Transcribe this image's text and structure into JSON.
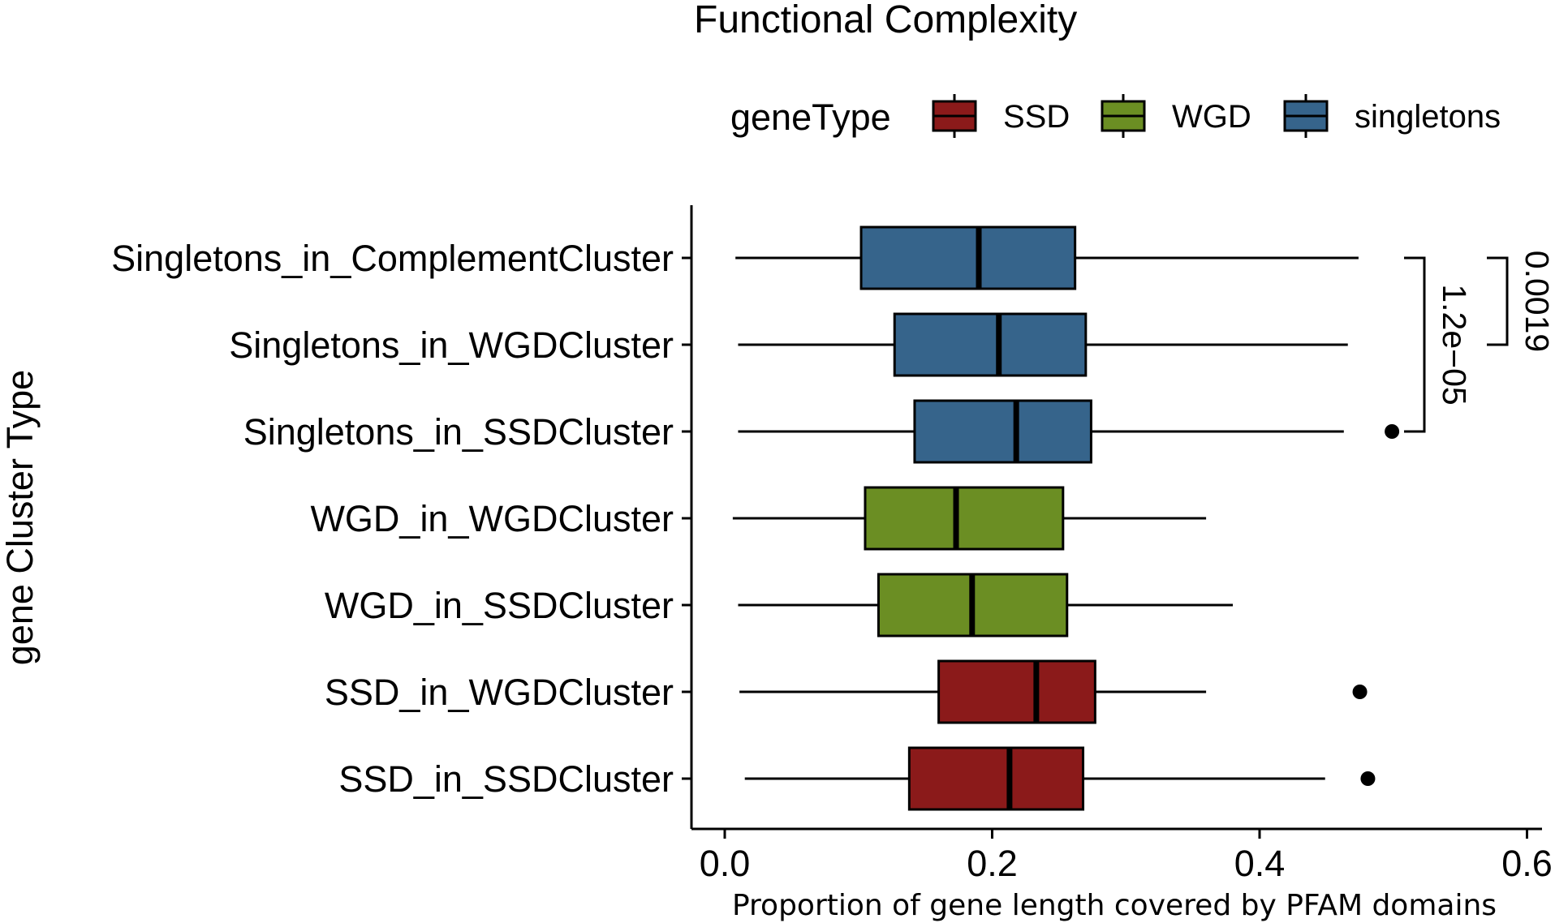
{
  "chart_data": {
    "type": "boxplot",
    "orientation": "horizontal",
    "title": "Functional Complexity",
    "xlabel": "Proportion of gene length covered by PFAM domains",
    "ylabel": "gene Cluster Type",
    "xlim": [
      -0.02,
      0.61
    ],
    "xticks": [
      0.0,
      0.2,
      0.4,
      0.6
    ],
    "xtick_labels": [
      "0.0",
      "0.2",
      "0.4",
      "0.6"
    ],
    "grid": false,
    "legend": {
      "title": "geneType",
      "position": "top",
      "entries": [
        {
          "name": "SSD",
          "color": "#8B1A1A"
        },
        {
          "name": "WGD",
          "color": "#6B8E23"
        },
        {
          "name": "singletons",
          "color": "#36648B"
        }
      ]
    },
    "categories": [
      "Singletons_in_ComplementCluster",
      "Singletons_in_WGDCluster",
      "Singletons_in_SSDCluster",
      "WGD_in_WGDCluster",
      "WGD_in_SSDCluster",
      "SSD_in_WGDCluster",
      "SSD_in_SSDCluster"
    ],
    "boxes": [
      {
        "category": "Singletons_in_ComplementCluster",
        "group": "singletons",
        "whisker_low": 0.008,
        "q1": 0.102,
        "median": 0.19,
        "q3": 0.262,
        "whisker_high": 0.474,
        "outliers": []
      },
      {
        "category": "Singletons_in_WGDCluster",
        "group": "singletons",
        "whisker_low": 0.01,
        "q1": 0.127,
        "median": 0.205,
        "q3": 0.27,
        "whisker_high": 0.466,
        "outliers": []
      },
      {
        "category": "Singletons_in_SSDCluster",
        "group": "singletons",
        "whisker_low": 0.01,
        "q1": 0.142,
        "median": 0.218,
        "q3": 0.274,
        "whisker_high": 0.463,
        "outliers": [
          0.499
        ]
      },
      {
        "category": "WGD_in_WGDCluster",
        "group": "WGD",
        "whisker_low": 0.006,
        "q1": 0.105,
        "median": 0.173,
        "q3": 0.253,
        "whisker_high": 0.36,
        "outliers": []
      },
      {
        "category": "WGD_in_SSDCluster",
        "group": "WGD",
        "whisker_low": 0.01,
        "q1": 0.115,
        "median": 0.185,
        "q3": 0.256,
        "whisker_high": 0.38,
        "outliers": []
      },
      {
        "category": "SSD_in_WGDCluster",
        "group": "SSD",
        "whisker_low": 0.011,
        "q1": 0.16,
        "median": 0.233,
        "q3": 0.277,
        "whisker_high": 0.36,
        "outliers": [
          0.475
        ]
      },
      {
        "category": "SSD_in_SSDCluster",
        "group": "SSD",
        "whisker_low": 0.015,
        "q1": 0.138,
        "median": 0.213,
        "q3": 0.268,
        "whisker_high": 0.449,
        "outliers": [
          0.481
        ]
      }
    ],
    "annotations": [
      {
        "label": "0.0019",
        "from": "Singletons_in_ComplementCluster",
        "to": "Singletons_in_WGDCluster"
      },
      {
        "label": "1.2e−05",
        "from": "Singletons_in_ComplementCluster",
        "to": "Singletons_in_SSDCluster"
      }
    ]
  }
}
